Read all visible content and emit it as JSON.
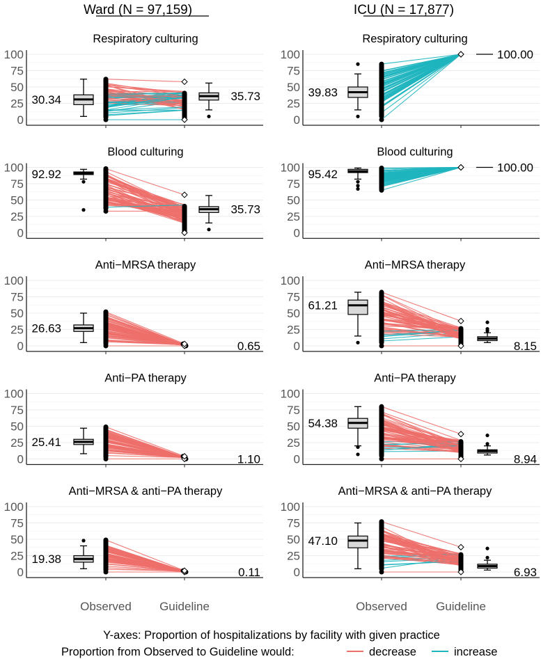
{
  "chart_data": {
    "type": "slope-boxplot",
    "column_titles": [
      "Ward (N = 97,159)",
      "ICU (N = 17,877)"
    ],
    "x_categories": [
      "Observed",
      "Guideline"
    ],
    "ylim": [
      0,
      100
    ],
    "yticks": [
      0,
      25,
      50,
      75,
      100
    ],
    "y_caption": "Y-axes: Proportion of hospitalizations by facility with given practice",
    "legend": {
      "title": "Proportion from Observed to Guideline would:",
      "placement": "bottom",
      "items": [
        {
          "label": "decrease",
          "color": "#ee6f6b"
        },
        {
          "label": "increase",
          "color": "#1fb5bf"
        }
      ]
    },
    "panels": [
      {
        "column": 0,
        "title": "Respiratory culturing",
        "observed_label": "30.34",
        "guideline_label": "35.73",
        "obs_box": [
          5,
          23,
          31,
          38,
          62
        ],
        "obs_outliers": [],
        "obs_range": [
          0,
          62
        ],
        "guide_box": [
          15,
          30,
          36,
          41,
          56
        ],
        "guide_outliers": [
          5
        ],
        "guide_range": [
          0,
          58
        ],
        "mix": 0.5
      },
      {
        "column": 1,
        "title": "Respiratory culturing",
        "observed_label": "39.83",
        "guideline_label": "100.00",
        "obs_box": [
          15,
          34,
          42,
          50,
          70
        ],
        "obs_outliers": [
          5,
          85
        ],
        "obs_range": [
          0,
          85
        ],
        "guide_box": null,
        "guide_outliers": [],
        "guide_range": [
          100,
          100
        ],
        "mix": 1
      },
      {
        "column": 0,
        "title": "Blood culturing",
        "observed_label": "92.92",
        "guideline_label": "35.73",
        "obs_box": [
          82,
          89,
          91,
          93,
          97
        ],
        "obs_outliers": [
          78,
          35
        ],
        "obs_range": [
          33,
          98
        ],
        "guide_box": [
          15,
          31,
          36,
          40,
          57
        ],
        "guide_outliers": [
          5
        ],
        "guide_range": [
          0,
          58
        ],
        "mix": 0
      },
      {
        "column": 1,
        "title": "Blood culturing",
        "observed_label": "95.42",
        "guideline_label": "100.00",
        "obs_box": [
          82,
          92,
          94,
          97,
          99
        ],
        "obs_outliers": [
          67,
          72,
          78
        ],
        "obs_range": [
          65,
          99
        ],
        "guide_box": null,
        "guide_outliers": [],
        "guide_range": [
          100,
          100
        ],
        "mix": 1
      },
      {
        "column": 0,
        "title": "Anti−MRSA therapy",
        "observed_label": "26.63",
        "guideline_label": "0.65",
        "obs_box": [
          5,
          22,
          27,
          32,
          50
        ],
        "obs_outliers": [],
        "obs_range": [
          0,
          52
        ],
        "guide_box": null,
        "guide_outliers": [],
        "guide_range": [
          0,
          3
        ],
        "mix": 0
      },
      {
        "column": 1,
        "title": "Anti−MRSA therapy",
        "observed_label": "61.21",
        "guideline_label": "8.15",
        "obs_box": [
          15,
          48,
          62,
          70,
          82
        ],
        "obs_outliers": [
          5
        ],
        "obs_range": [
          0,
          82
        ],
        "guide_box": [
          5,
          8,
          11,
          14,
          20
        ],
        "guide_outliers": [
          23,
          26,
          36
        ],
        "guide_range": [
          0,
          38
        ],
        "mix": 0
      },
      {
        "column": 0,
        "title": "Anti−PA therapy",
        "observed_label": "25.41",
        "guideline_label": "1.10",
        "obs_box": [
          8,
          22,
          26,
          30,
          47
        ],
        "obs_outliers": [],
        "obs_range": [
          0,
          49
        ],
        "guide_box": null,
        "guide_outliers": [],
        "guide_range": [
          0,
          4
        ],
        "mix": 0
      },
      {
        "column": 1,
        "title": "Anti−PA therapy",
        "observed_label": "54.38",
        "guideline_label": "8.94",
        "obs_box": [
          20,
          47,
          55,
          62,
          80
        ],
        "obs_outliers": [
          7,
          18
        ],
        "obs_range": [
          0,
          80
        ],
        "guide_box": [
          6,
          9,
          12,
          14,
          20
        ],
        "guide_outliers": [
          23,
          36
        ],
        "guide_range": [
          0,
          38
        ],
        "mix": 0
      },
      {
        "column": 0,
        "title": "Anti−MRSA & anti−PA therapy",
        "observed_label": "19.38",
        "guideline_label": "0.11",
        "obs_box": [
          5,
          15,
          20,
          25,
          40
        ],
        "obs_outliers": [
          48
        ],
        "obs_range": [
          0,
          49
        ],
        "guide_box": null,
        "guide_outliers": [],
        "guide_range": [
          0,
          2
        ],
        "mix": 0
      },
      {
        "column": 1,
        "title": "Anti−MRSA & anti−PA therapy",
        "observed_label": "47.10",
        "guideline_label": "6.93",
        "obs_box": [
          5,
          37,
          48,
          55,
          75
        ],
        "obs_outliers": [],
        "obs_range": [
          0,
          77
        ],
        "guide_box": [
          3,
          6,
          9,
          12,
          18
        ],
        "guide_outliers": [
          22,
          36
        ],
        "guide_range": [
          0,
          38
        ],
        "mix": 0
      }
    ]
  }
}
